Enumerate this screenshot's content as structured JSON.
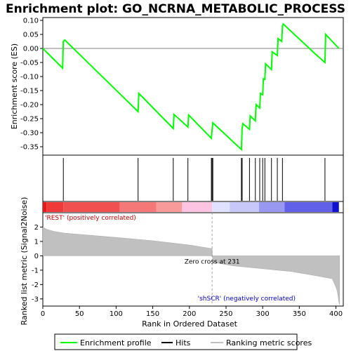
{
  "chart_data": {
    "type": "line",
    "title": "Enrichment plot: GO_NCRNA_METABOLIC_PROCESS",
    "es_panel": {
      "ylabel": "Enrichment score (ES)",
      "ylim": [
        -0.38,
        0.11
      ],
      "yticks": [
        0.1,
        0.05,
        0.0,
        -0.05,
        -0.1,
        -0.15,
        -0.2,
        -0.25,
        -0.3,
        -0.35
      ],
      "ytick_labels": [
        "0.10",
        "0.05",
        "0.00",
        "-0.05",
        "-0.10",
        "-0.15",
        "-0.20",
        "-0.25",
        "-0.30",
        "-0.35"
      ],
      "line_color": "#00ff00",
      "x": [
        0,
        27,
        28,
        30,
        130,
        131,
        178,
        179,
        198,
        199,
        230,
        231,
        232,
        271,
        272,
        273,
        282,
        283,
        290,
        291,
        296,
        297,
        300,
        301,
        303,
        304,
        312,
        313,
        320,
        321,
        326,
        327,
        328,
        372,
        385,
        386,
        404
      ],
      "y": [
        0.0,
        -0.07,
        0.025,
        0.03,
        -0.225,
        -0.16,
        -0.285,
        -0.235,
        -0.28,
        -0.237,
        -0.32,
        -0.29,
        -0.265,
        -0.36,
        -0.285,
        -0.268,
        -0.288,
        -0.24,
        -0.258,
        -0.2,
        -0.212,
        -0.16,
        -0.165,
        -0.108,
        -0.11,
        -0.055,
        -0.075,
        -0.012,
        -0.025,
        0.035,
        0.025,
        0.08,
        0.087,
        -0.02,
        -0.05,
        0.05,
        0.0
      ]
    },
    "hits": [
      28,
      130,
      178,
      198,
      230,
      231,
      232,
      271,
      272,
      282,
      290,
      296,
      300,
      303,
      312,
      320,
      327,
      385
    ],
    "rank_panel": {
      "ylabel": "Ranked list metric (Signal2Noise)",
      "ylim": [
        -3.5,
        3.0
      ],
      "yticks": [
        2,
        1,
        0,
        -1,
        -2,
        -3
      ],
      "ytick_labels": [
        "2",
        "1",
        "0",
        "-1",
        "-2",
        "-3"
      ],
      "profile_x": [
        0,
        5,
        15,
        30,
        60,
        100,
        150,
        200,
        231,
        232,
        260,
        300,
        340,
        380,
        395,
        400,
        402,
        404,
        405
      ],
      "profile_y": [
        2.0,
        1.85,
        1.7,
        1.58,
        1.45,
        1.28,
        1.05,
        0.75,
        0.5,
        -0.45,
        -0.7,
        -0.9,
        -1.1,
        -1.45,
        -1.6,
        -2.2,
        -2.5,
        -3.2,
        -3.4
      ],
      "positive_label": "'REST' (positively correlated)",
      "negative_label": "'shSCR' (negatively correlated)",
      "zero_cross_label": "Zero cross at 231",
      "zero_cross": 231
    },
    "xlabel": "Rank in Ordered Dataset",
    "xlim": [
      0,
      410
    ],
    "xticks": [
      0,
      50,
      100,
      150,
      200,
      250,
      300,
      350,
      400
    ],
    "xtick_labels": [
      "0",
      "50",
      "100",
      "150",
      "200",
      "250",
      "300",
      "350",
      "400"
    ],
    "legend": {
      "placement": "bottom",
      "entries": [
        {
          "label": "Enrichment profile",
          "color": "#00ff00"
        },
        {
          "label": "Hits",
          "color": "#000000"
        },
        {
          "label": "Ranking metric scores",
          "color": "#c0c0c0"
        }
      ]
    },
    "colors": {
      "positive": "#ff2020",
      "negative": "#3030e0"
    }
  }
}
